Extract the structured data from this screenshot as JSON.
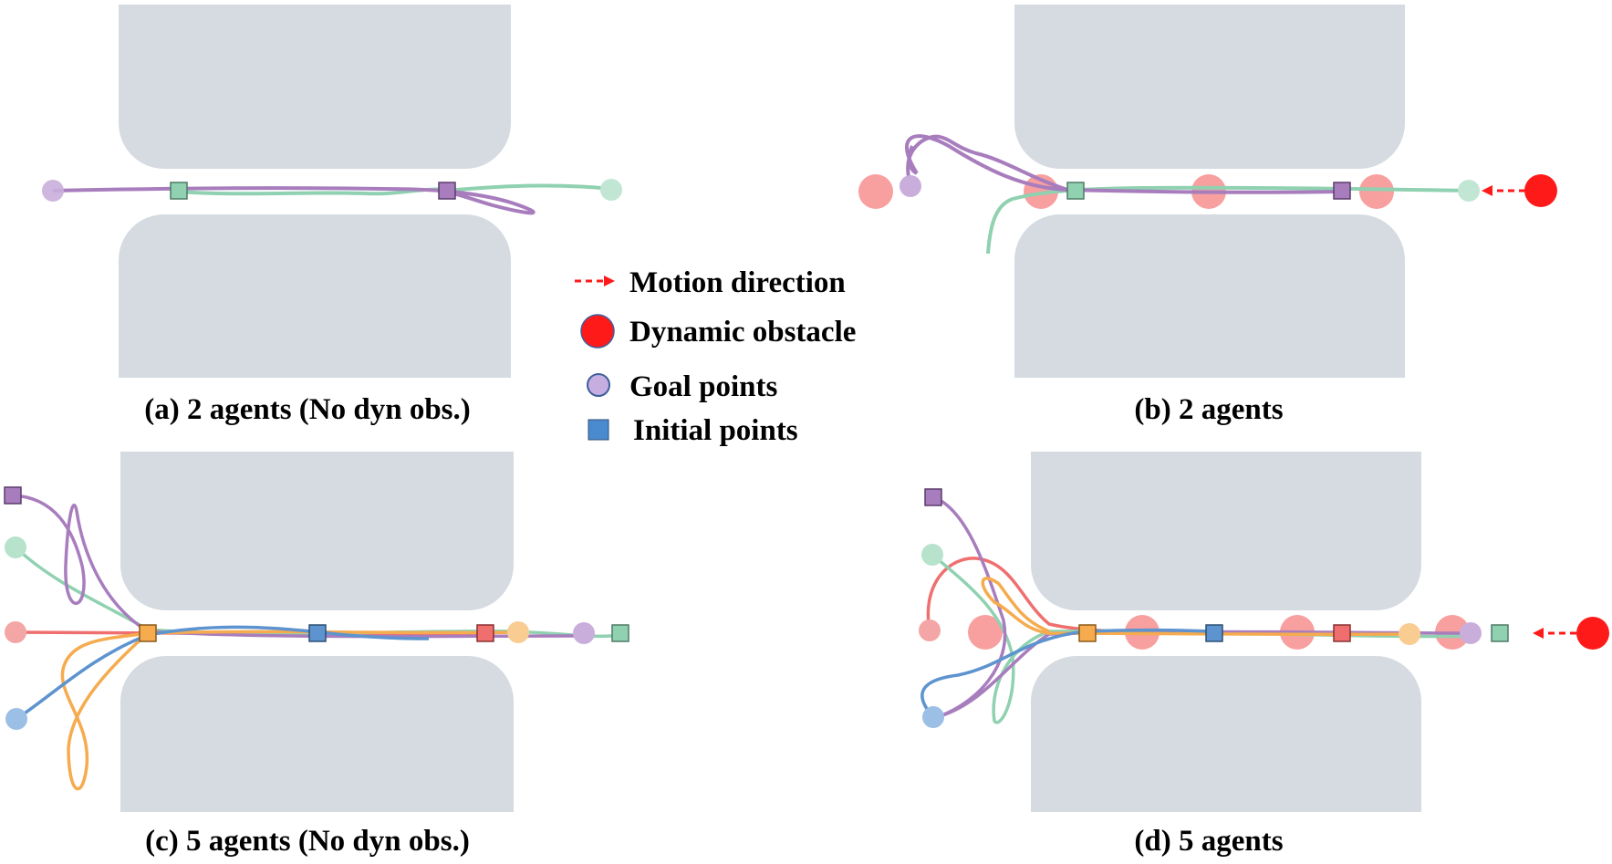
{
  "panels": [
    {
      "id": "a",
      "caption": "(a) 2 agents (No dyn obs.)"
    },
    {
      "id": "b",
      "caption": "(b) 2 agents"
    },
    {
      "id": "c",
      "caption": "(c) 5 agents (No dyn obs.)"
    },
    {
      "id": "d",
      "caption": "(d) 5 agents"
    }
  ],
  "legend": {
    "motion_direction": "Motion direction",
    "dynamic_obstacle": "Dynamic obstacle",
    "goal_points": "Goal points",
    "initial_points": "Initial points"
  },
  "colors": {
    "wall": "#d5dbe1",
    "purple": "#a87dbd",
    "green": "#8fd1b0",
    "red": "#ef6f6f",
    "orange": "#f5ab4e",
    "blue": "#5d93cf",
    "obstacle": "#ff1a1a",
    "obstacle_trail": "#f57f7f",
    "legend_goal": "#c6aee0",
    "legend_init": "#4a8bd0"
  }
}
